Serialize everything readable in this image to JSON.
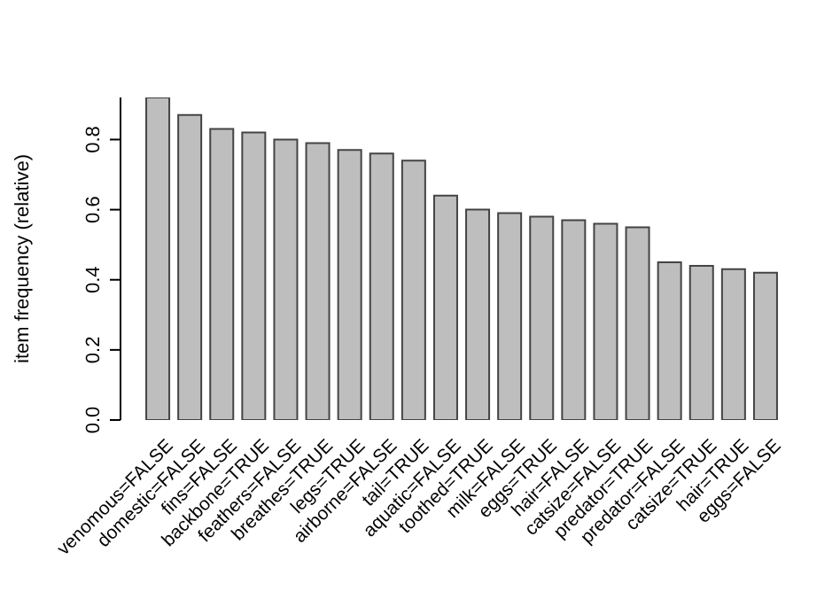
{
  "chart_data": {
    "type": "bar",
    "ylabel": "item frequency (relative)",
    "categories": [
      "venomous=FALSE",
      "domestic=FALSE",
      "fins=FALSE",
      "backbone=TRUE",
      "feathers=FALSE",
      "breathes=TRUE",
      "legs=TRUE",
      "airborne=FALSE",
      "tail=TRUE",
      "aquatic=FALSE",
      "toothed=TRUE",
      "milk=FALSE",
      "eggs=TRUE",
      "hair=FALSE",
      "catsize=FALSE",
      "predator=TRUE",
      "predator=FALSE",
      "catsize=TRUE",
      "hair=TRUE",
      "eggs=FALSE"
    ],
    "values": [
      0.92,
      0.87,
      0.83,
      0.82,
      0.8,
      0.79,
      0.77,
      0.76,
      0.74,
      0.64,
      0.6,
      0.59,
      0.58,
      0.57,
      0.56,
      0.55,
      0.45,
      0.44,
      0.43,
      0.42
    ],
    "color": "#bebebe",
    "ylim": [
      0,
      0.92
    ],
    "yticks": [
      {
        "value": 0,
        "label": "0.0"
      },
      {
        "value": 0.2,
        "label": "0.2"
      },
      {
        "value": 0.4,
        "label": "0.4"
      },
      {
        "value": 0.6,
        "label": "0.6"
      },
      {
        "value": 0.8,
        "label": "0.8"
      }
    ]
  }
}
